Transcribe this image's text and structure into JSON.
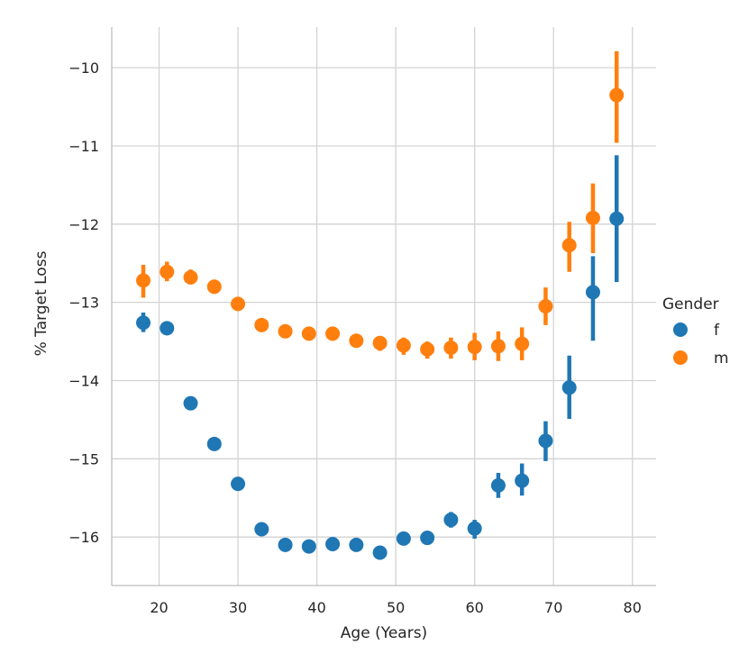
{
  "chart_data": {
    "type": "scatter",
    "subtype": "pointplot-with-error-bars",
    "xlabel": "Age (Years)",
    "ylabel": "% Target Loss",
    "xlim": [
      14,
      83
    ],
    "ylim": [
      -16.62,
      -9.48
    ],
    "xticks": [
      20,
      30,
      40,
      50,
      60,
      70,
      80
    ],
    "yticks": [
      -10,
      -11,
      -12,
      -13,
      -14,
      -15,
      -16
    ],
    "ytick_labels": [
      "−10",
      "−11",
      "−12",
      "−13",
      "−14",
      "−15",
      "−16"
    ],
    "grid": true,
    "legend": {
      "title": "Gender",
      "placement": "right"
    },
    "series": [
      {
        "name": "f",
        "color": "#1f77b4",
        "x": [
          18,
          21,
          24,
          27,
          30,
          33,
          36,
          39,
          42,
          45,
          48,
          51,
          54,
          57,
          60,
          63,
          66,
          69,
          72,
          75,
          78
        ],
        "y": [
          -13.26,
          -13.33,
          -14.29,
          -14.81,
          -15.32,
          -15.9,
          -16.1,
          -16.12,
          -16.09,
          -16.1,
          -16.2,
          -16.02,
          -16.01,
          -15.78,
          -15.89,
          -15.34,
          -15.28,
          -14.77,
          -14.09,
          -12.87,
          -11.93
        ],
        "err_lo": [
          -13.38,
          -13.33,
          -14.29,
          -14.81,
          -15.32,
          -15.9,
          -16.1,
          -16.12,
          -16.09,
          -16.1,
          -16.27,
          -16.1,
          -16.1,
          -15.88,
          -16.02,
          -15.5,
          -15.47,
          -15.03,
          -14.49,
          -13.49,
          -12.74
        ],
        "err_hi": [
          -13.13,
          -13.33,
          -14.29,
          -14.81,
          -15.32,
          -15.9,
          -16.1,
          -16.12,
          -16.09,
          -16.1,
          -16.14,
          -15.96,
          -15.93,
          -15.68,
          -15.78,
          -15.18,
          -15.06,
          -14.52,
          -13.68,
          -12.41,
          -11.12
        ]
      },
      {
        "name": "m",
        "color": "#ff7f0e",
        "x": [
          18,
          21,
          24,
          27,
          30,
          33,
          36,
          39,
          42,
          45,
          48,
          51,
          54,
          57,
          60,
          63,
          66,
          69,
          72,
          75,
          78
        ],
        "y": [
          -12.72,
          -12.61,
          -12.68,
          -12.8,
          -13.02,
          -13.29,
          -13.37,
          -13.4,
          -13.4,
          -13.49,
          -13.52,
          -13.55,
          -13.6,
          -13.58,
          -13.57,
          -13.56,
          -13.53,
          -13.05,
          -12.27,
          -11.92,
          -10.35
        ],
        "err_lo": [
          -12.94,
          -12.73,
          -12.77,
          -12.86,
          -13.02,
          -13.36,
          -13.37,
          -13.4,
          -13.46,
          -13.58,
          -13.62,
          -13.67,
          -13.72,
          -13.72,
          -13.74,
          -13.75,
          -13.74,
          -13.29,
          -12.61,
          -12.37,
          -10.96
        ],
        "err_hi": [
          -12.52,
          -12.48,
          -12.58,
          -12.74,
          -13.02,
          -13.22,
          -13.37,
          -13.4,
          -13.34,
          -13.41,
          -13.43,
          -13.45,
          -13.5,
          -13.45,
          -13.39,
          -13.37,
          -13.32,
          -12.81,
          -11.97,
          -11.48,
          -9.79
        ]
      }
    ]
  }
}
